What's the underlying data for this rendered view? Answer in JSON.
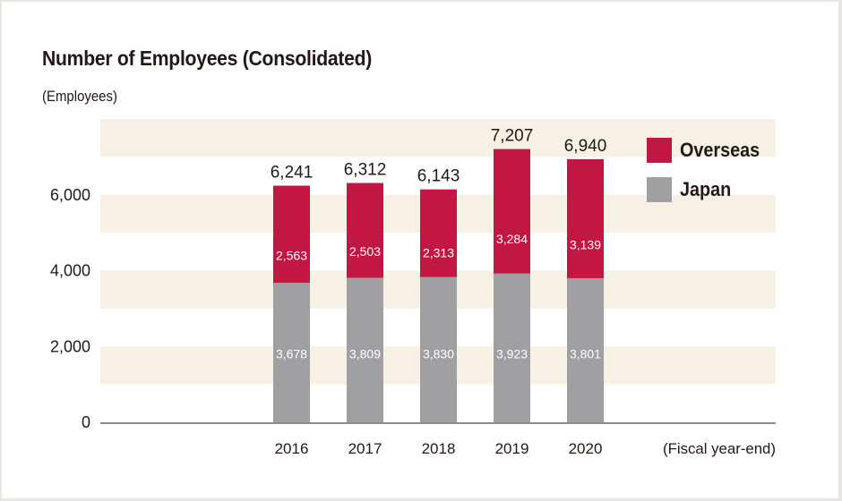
{
  "chart_data": {
    "type": "bar",
    "stacked": true,
    "title": "Number of Employees (Consolidated)",
    "ylabel": "(Employees)",
    "xlabel": "(Fiscal year-end)",
    "categories": [
      "2016",
      "2017",
      "2018",
      "2019",
      "2020"
    ],
    "series": [
      {
        "name": "Japan",
        "color": "#a09fa1",
        "values": [
          3678,
          3809,
          3830,
          3923,
          3801
        ],
        "labels": [
          "3,678",
          "3,809",
          "3,830",
          "3,923",
          "3,801"
        ]
      },
      {
        "name": "Overseas",
        "color": "#c21742",
        "values": [
          2563,
          2503,
          2313,
          3284,
          3139
        ],
        "labels": [
          "2,563",
          "2,503",
          "2,313",
          "3,284",
          "3,139"
        ]
      }
    ],
    "totals": [
      6241,
      6312,
      6143,
      7207,
      6940
    ],
    "total_labels": [
      "6,241",
      "6,312",
      "6,143",
      "7,207",
      "6,940"
    ],
    "ylim": [
      0,
      8000
    ],
    "yticks": [
      0,
      2000,
      4000,
      6000
    ],
    "ytick_labels": [
      "0",
      "2,000",
      "4,000",
      "6,000"
    ],
    "band_color": "#f7f0e4",
    "grid": "alternating horizontal bands every 1,000",
    "legend": {
      "position": "top-right",
      "entries": [
        "Overseas",
        "Japan"
      ]
    }
  }
}
